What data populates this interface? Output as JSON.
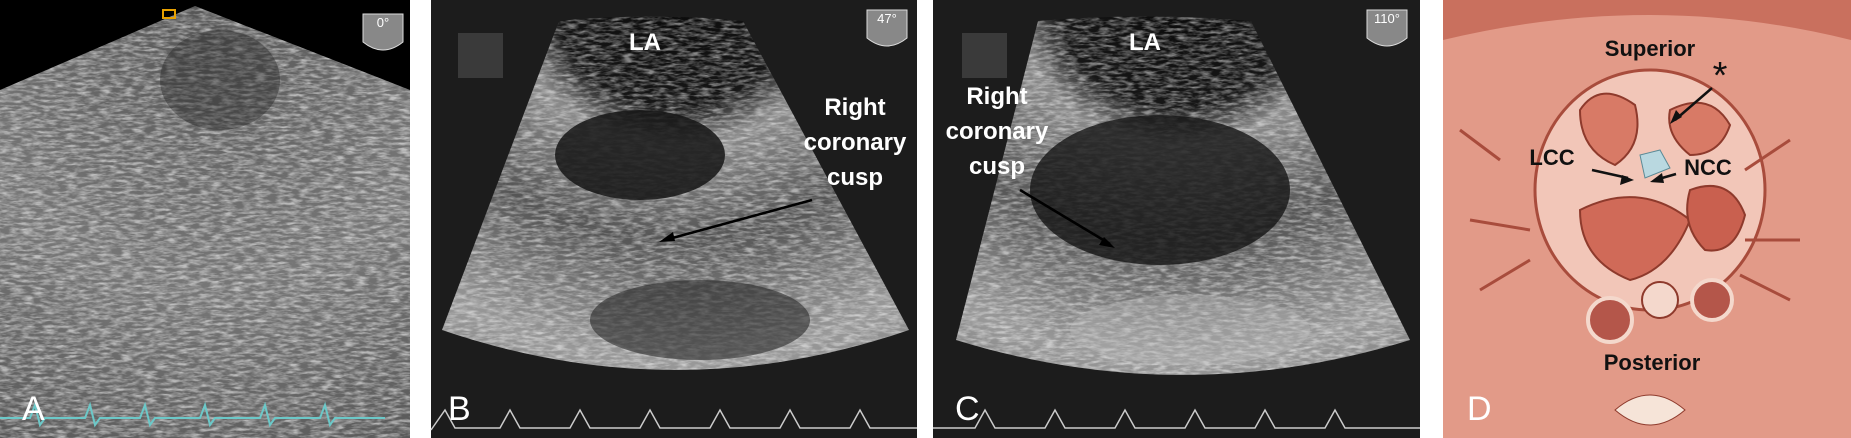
{
  "panels": [
    {
      "letter": "A",
      "angle": "0°"
    },
    {
      "letter": "B",
      "angle": "47°",
      "label": "LA",
      "annotation": [
        "Right",
        "coronary",
        "cusp"
      ]
    },
    {
      "letter": "C",
      "angle": "110°",
      "label": "LA",
      "annotation": [
        "Right",
        "coronary",
        "cusp"
      ]
    },
    {
      "letter": "D",
      "labels": {
        "superior": "Superior",
        "asterisk": "*",
        "lcc": "LCC",
        "ncc": "NCC",
        "posterior": "Posterior"
      }
    }
  ]
}
